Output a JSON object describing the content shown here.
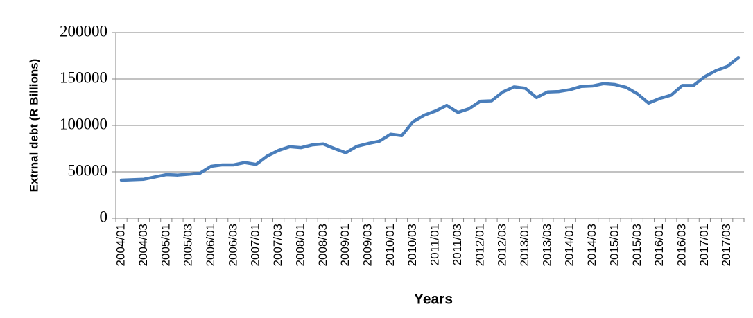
{
  "chart_data": {
    "type": "line",
    "y_label": "Extrnal debt (R Billions)",
    "x_label": "Years",
    "categories": [
      "2004/01",
      null,
      "2004/03",
      null,
      "2005/01",
      null,
      "2005/03",
      null,
      "2006/01",
      null,
      "2006/03",
      null,
      "2007/01",
      null,
      "2007/03",
      null,
      "2008/01",
      null,
      "2008/03",
      null,
      "2009/01",
      null,
      "2009/03",
      null,
      "2010/01",
      null,
      "2010/03",
      null,
      "2011/01",
      null,
      "2011/03",
      null,
      "2012/01",
      null,
      "2012/03",
      null,
      "2013/01",
      null,
      "2013/03",
      null,
      "2014/01",
      null,
      "2014/03",
      null,
      "2015/01",
      null,
      "2015/03",
      null,
      "2016/01",
      null,
      "2016/03",
      null,
      "2017/01",
      null,
      "2017/03",
      null
    ],
    "series": [
      {
        "color": "#4a7ebb",
        "values": [
          41000,
          41500,
          42000,
          44500,
          47000,
          46500,
          47500,
          48500,
          56000,
          57500,
          57500,
          60000,
          58000,
          67000,
          73000,
          77000,
          76000,
          79000,
          80000,
          75000,
          70500,
          77500,
          80500,
          83000,
          90500,
          89000,
          104000,
          111000,
          115500,
          121500,
          114000,
          118000,
          126000,
          126500,
          136000,
          141500,
          140000,
          130000,
          136000,
          136500,
          138500,
          142000,
          142500,
          145000,
          144000,
          141000,
          134000,
          124000,
          129000,
          132500,
          143000,
          143000,
          152500,
          159000,
          163500,
          173000
        ]
      }
    ],
    "ylim": [
      0,
      200000
    ],
    "yticks": [
      0,
      50000,
      100000,
      150000,
      200000
    ],
    "grid": true
  }
}
